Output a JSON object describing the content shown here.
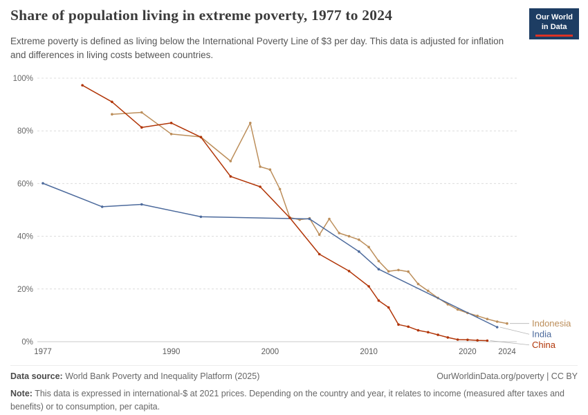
{
  "header": {
    "title": "Share of population living in extreme poverty, 1977 to 2024",
    "subtitle": "Extreme poverty is defined as living below the International Poverty Line of $3 per day. This data is adjusted for inflation and differences in living costs between countries.",
    "logo": {
      "line1": "Our World",
      "line2": "in Data",
      "bg_color": "#1D3D63",
      "accent_color": "#DC3225"
    }
  },
  "footer": {
    "source_label": "Data source:",
    "source_text": "World Bank Poverty and Inequality Platform (2025)",
    "link_text": "OurWorldinData.org/poverty",
    "license_sep": " | ",
    "license": "CC BY",
    "note_label": "Note:",
    "note_text": "This data is expressed in international-$ at 2021 prices. Depending on the country and year, it relates to income (measured after taxes and benefits) or to consumption, per capita."
  },
  "chart_data": {
    "type": "line",
    "title": "Share of population living in extreme poverty, 1977 to 2024",
    "xlabel": "",
    "ylabel": "",
    "x_range": [
      1977,
      2024
    ],
    "y_range": [
      0,
      100
    ],
    "x_ticks": [
      1977,
      1990,
      2000,
      2010,
      2020,
      2024
    ],
    "y_ticks": [
      0,
      20,
      40,
      60,
      80,
      100
    ],
    "y_tick_suffix": "%",
    "grid": "dashed-horizontal",
    "legend_position": "right-end-labels",
    "series": [
      {
        "name": "Indonesia",
        "color": "#BC8E5A",
        "points": [
          [
            1984,
            86.3
          ],
          [
            1987,
            87.0
          ],
          [
            1990,
            78.8
          ],
          [
            1993,
            77.7
          ],
          [
            1996,
            68.5
          ],
          [
            1998,
            83.0
          ],
          [
            1999,
            66.4
          ],
          [
            2000,
            65.3
          ],
          [
            2001,
            57.9
          ],
          [
            2002,
            47.1
          ],
          [
            2003,
            46.3
          ],
          [
            2004,
            46.8
          ],
          [
            2005,
            40.6
          ],
          [
            2006,
            46.6
          ],
          [
            2007,
            41.2
          ],
          [
            2008,
            40.0
          ],
          [
            2009,
            38.7
          ],
          [
            2010,
            35.9
          ],
          [
            2011,
            30.6
          ],
          [
            2012,
            26.7
          ],
          [
            2013,
            27.2
          ],
          [
            2014,
            26.6
          ],
          [
            2015,
            21.9
          ],
          [
            2016,
            19.3
          ],
          [
            2017,
            16.6
          ],
          [
            2018,
            14.2
          ],
          [
            2019,
            12.2
          ],
          [
            2020,
            10.9
          ],
          [
            2021,
            9.8
          ],
          [
            2022,
            8.6
          ],
          [
            2023,
            7.6
          ],
          [
            2024,
            6.9
          ]
        ]
      },
      {
        "name": "India",
        "color": "#4C6A9C",
        "points": [
          [
            1977,
            60.1
          ],
          [
            1983,
            51.2
          ],
          [
            1987,
            52.1
          ],
          [
            1993,
            47.4
          ],
          [
            2004,
            46.6
          ],
          [
            2009,
            34.2
          ],
          [
            2011,
            27.5
          ],
          [
            2023,
            5.5
          ]
        ]
      },
      {
        "name": "China",
        "color": "#B13507",
        "points": [
          [
            1981,
            97.3
          ],
          [
            1984,
            91.0
          ],
          [
            1987,
            81.3
          ],
          [
            1990,
            83.0
          ],
          [
            1993,
            77.6
          ],
          [
            1996,
            62.7
          ],
          [
            1999,
            58.8
          ],
          [
            2002,
            47.0
          ],
          [
            2005,
            33.2
          ],
          [
            2008,
            26.8
          ],
          [
            2010,
            21.0
          ],
          [
            2011,
            15.6
          ],
          [
            2012,
            13.0
          ],
          [
            2013,
            6.5
          ],
          [
            2014,
            5.7
          ],
          [
            2015,
            4.3
          ],
          [
            2016,
            3.6
          ],
          [
            2017,
            2.6
          ],
          [
            2018,
            1.6
          ],
          [
            2019,
            0.8
          ],
          [
            2020,
            0.7
          ],
          [
            2021,
            0.5
          ],
          [
            2022,
            0.4
          ]
        ]
      }
    ]
  }
}
